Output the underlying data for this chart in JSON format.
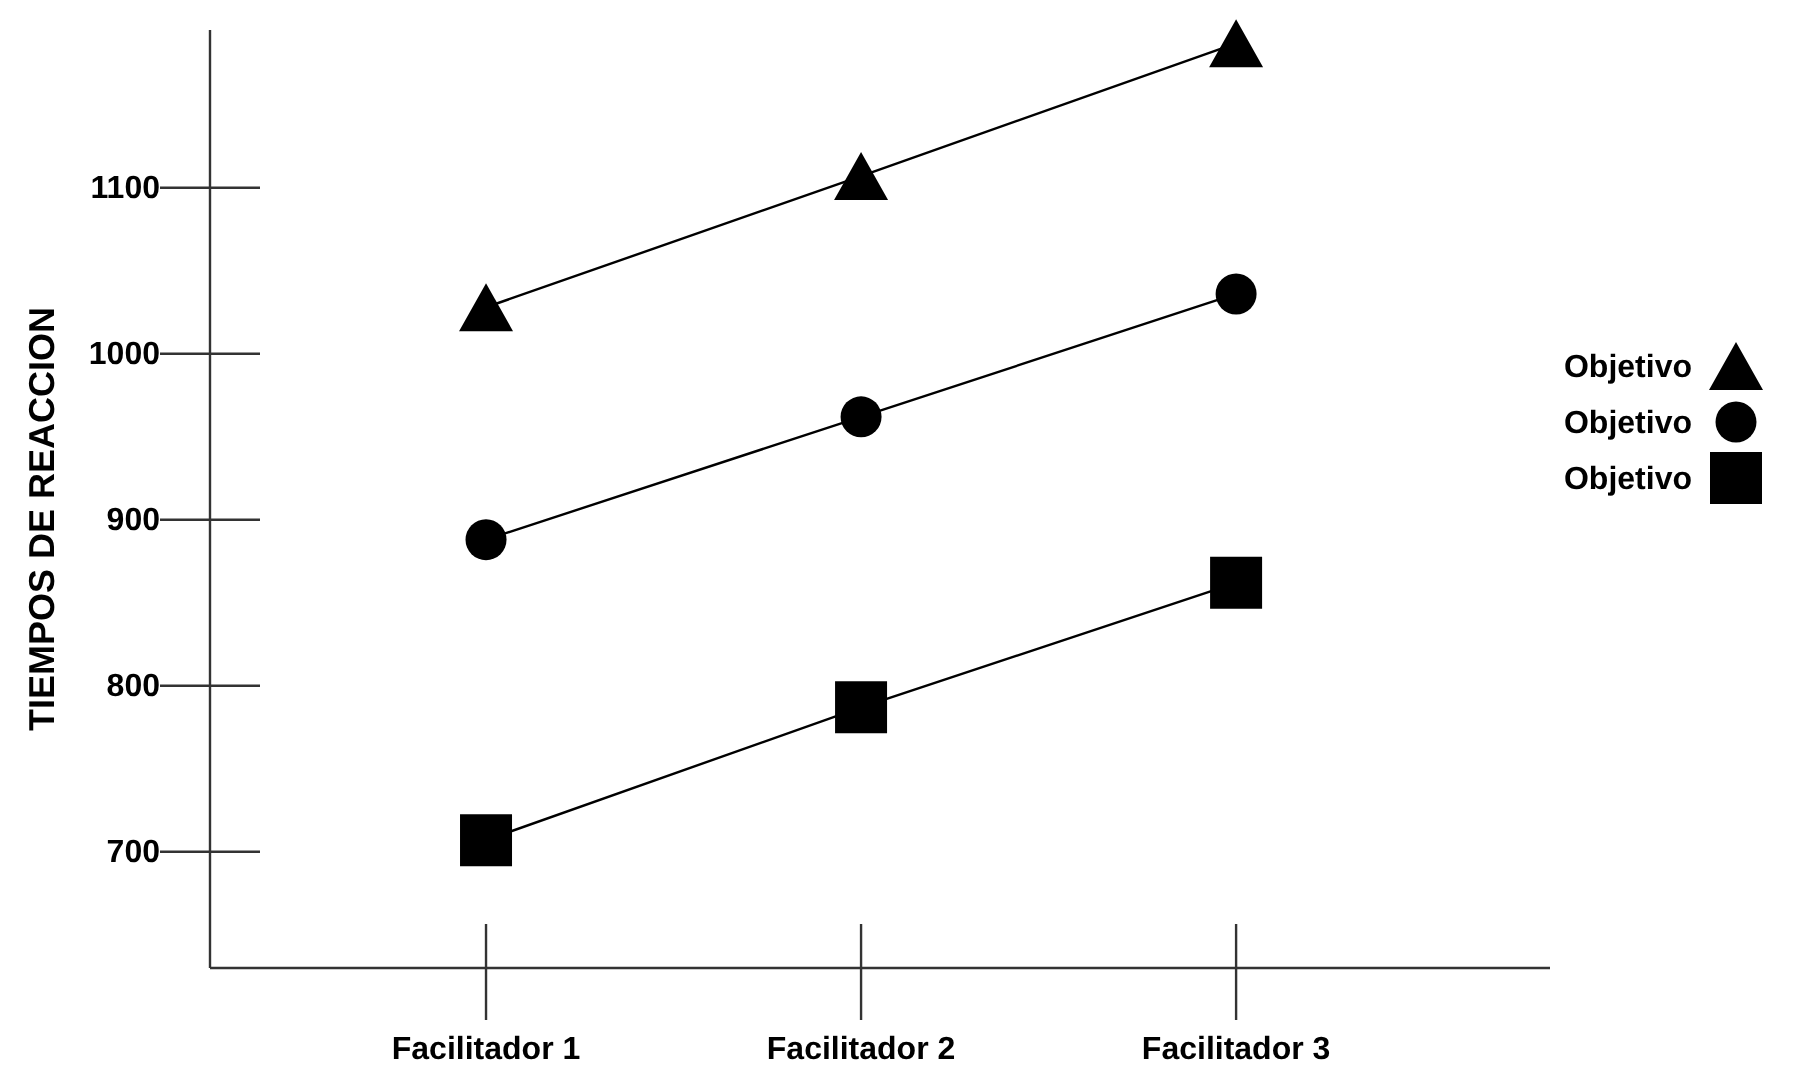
{
  "chart_data": {
    "type": "line",
    "ylabel": "TIEMPOS DE REACCION",
    "categories": [
      "Facilitador 1",
      "Facilitador 2",
      "Facilitador 3"
    ],
    "series": [
      {
        "name": "Objetivo",
        "color": "#000000",
        "marker": "triangle",
        "values": [
          1028,
          1107,
          1187
        ]
      },
      {
        "name": "Objetivo",
        "color": "#000000",
        "marker": "circle",
        "values": [
          888,
          962,
          1036
        ]
      },
      {
        "name": "Objetivo",
        "color": "#000000",
        "marker": "square",
        "values": [
          707,
          787,
          862
        ]
      }
    ],
    "ylim": [
      630,
      1195
    ],
    "yticks": [
      700,
      800,
      900,
      1000,
      1100
    ],
    "grid": false,
    "legend": "right",
    "line_style": "solid"
  }
}
